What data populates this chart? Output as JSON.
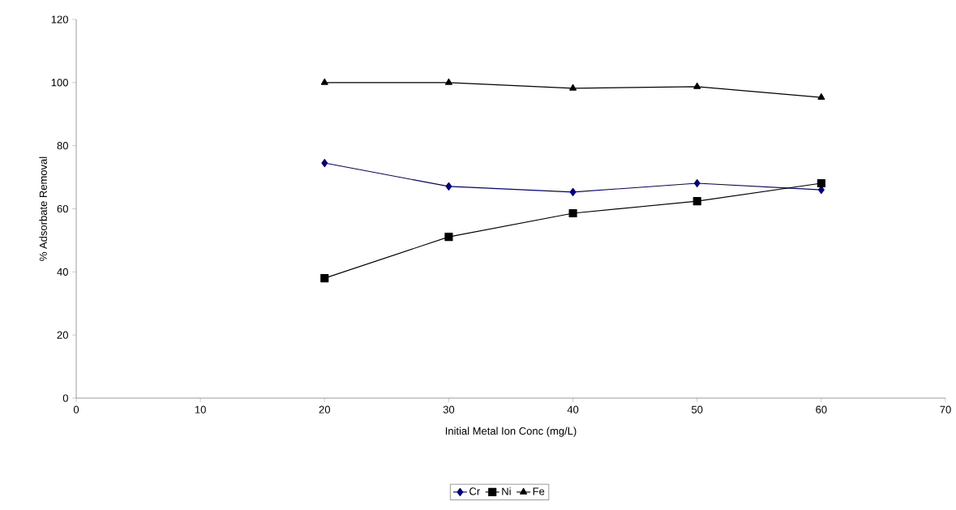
{
  "chart_data": {
    "type": "line",
    "xlabel": "Initial Metal Ion Conc (mg/L)",
    "ylabel": "% Adsorbate Removal",
    "x": [
      20,
      30,
      40,
      50,
      60
    ],
    "series": [
      {
        "name": "Cr",
        "color": "#000080",
        "marker": "diamond",
        "values": [
          74.5,
          67.1,
          65.3,
          68.1,
          66.0
        ]
      },
      {
        "name": "Ni",
        "color": "#000000",
        "marker": "square",
        "values": [
          38.0,
          51.1,
          58.6,
          62.4,
          68.1
        ]
      },
      {
        "name": "Fe",
        "color": "#000000",
        "marker": "triangle",
        "values": [
          100,
          100,
          98.2,
          98.7,
          95.3
        ]
      }
    ],
    "xlim": [
      0,
      70
    ],
    "xticks": [
      0,
      10,
      20,
      30,
      40,
      50,
      60,
      70
    ],
    "ylim": [
      0,
      120
    ],
    "yticks": [
      0,
      20,
      40,
      60,
      80,
      100,
      120
    ],
    "grid": false,
    "legend": "bottom",
    "line_style": "solid"
  }
}
